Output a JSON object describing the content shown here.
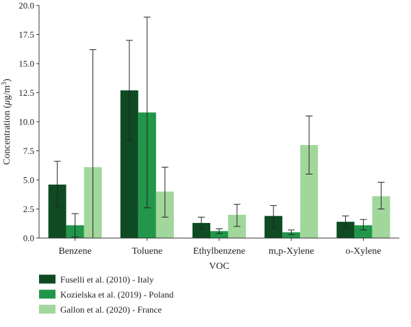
{
  "chart_data": {
    "type": "bar",
    "xlabel": "VOC",
    "ylabel": "Concentration (μg/m3)",
    "ylabel_parts": {
      "prefix": "Concentration (",
      "unit_mu": "μ",
      "unit_rest": "g/m",
      "unit_sup": "3",
      "suffix": ")"
    },
    "ylim": [
      0,
      20
    ],
    "yticks": [
      "0.0",
      "2.5",
      "5.0",
      "7.5",
      "10.0",
      "12.5",
      "15.0",
      "17.5",
      "20.0"
    ],
    "categories": [
      "Benzene",
      "Toluene",
      "Ethylbenzene",
      "m,p-Xylene",
      "o-Xylene"
    ],
    "series": [
      {
        "name": "Fuselli et al. (2010) - Italy",
        "color": "#0e4a22",
        "values": [
          4.6,
          12.7,
          1.3,
          1.9,
          1.4
        ],
        "err_low": [
          2.6,
          8.4,
          0.8,
          0.9,
          0.9
        ],
        "err_high": [
          6.6,
          17.0,
          1.8,
          2.8,
          1.9
        ]
      },
      {
        "name": "Kozielska et al. (2019) - Poland",
        "color": "#22964a",
        "values": [
          1.1,
          10.8,
          0.6,
          0.5,
          1.1
        ],
        "err_low": [
          0.1,
          2.6,
          0.4,
          0.3,
          0.7
        ],
        "err_high": [
          2.1,
          19.0,
          0.8,
          0.7,
          1.6
        ]
      },
      {
        "name": "Gallon et al. (2020) - France",
        "color": "#a2d79c",
        "values": [
          6.1,
          4.0,
          2.0,
          8.0,
          3.6
        ],
        "err_low": [
          0.0,
          1.8,
          1.0,
          5.5,
          2.5
        ],
        "err_high": [
          16.2,
          6.1,
          2.9,
          10.5,
          4.8
        ]
      }
    ],
    "legend_position": "bottom-left",
    "grid": false
  }
}
